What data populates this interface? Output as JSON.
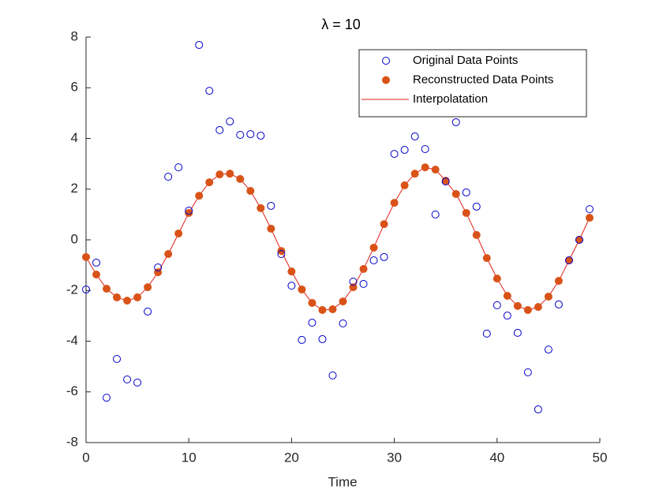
{
  "chart_data": {
    "type": "line",
    "title": "λ = 10",
    "x_label": "Time",
    "x": [
      0,
      1,
      2,
      3,
      4,
      5,
      6,
      7,
      8,
      9,
      10,
      11,
      12,
      13,
      14,
      15,
      16,
      17,
      18,
      19,
      20,
      21,
      22,
      23,
      24,
      25,
      26,
      27,
      28,
      29,
      30,
      31,
      32,
      33,
      34,
      35,
      36,
      37,
      38,
      39,
      40,
      41,
      42,
      43,
      44,
      45,
      46,
      47,
      48,
      49
    ],
    "series": [
      {
        "name": "Original Data Points",
        "color": "#0000cc",
        "style": "open-circle",
        "values": [
          -1.96,
          -0.9,
          -6.23,
          -4.7,
          -5.51,
          -5.63,
          -2.83,
          -1.09,
          2.49,
          2.86,
          1.15,
          7.69,
          5.88,
          4.33,
          4.67,
          4.14,
          4.17,
          4.11,
          1.34,
          -0.56,
          -1.81,
          -3.95,
          -3.27,
          -3.92,
          -5.35,
          -3.3,
          -1.65,
          -1.74,
          -0.81,
          -0.68,
          3.39,
          3.55,
          4.08,
          3.58,
          1.0,
          2.3,
          4.64,
          1.87,
          1.31,
          -3.7,
          -2.58,
          -2.99,
          -3.67,
          -5.23,
          -6.69,
          -4.33,
          -2.55,
          -0.81,
          0.0,
          1.21
        ]
      },
      {
        "name": "Reconstructed Data Points",
        "color": "#d95319",
        "style": "filled-circle",
        "values": [
          -0.68,
          -1.37,
          -1.93,
          -2.27,
          -2.4,
          -2.27,
          -1.87,
          -1.28,
          -0.56,
          0.25,
          1.06,
          1.74,
          2.27,
          2.58,
          2.61,
          2.4,
          1.93,
          1.25,
          0.44,
          -0.44,
          -1.25,
          -1.96,
          -2.49,
          -2.77,
          -2.74,
          -2.43,
          -1.87,
          -1.15,
          -0.31,
          0.62,
          1.46,
          2.15,
          2.61,
          2.86,
          2.77,
          2.33,
          1.81,
          1.06,
          0.19,
          -0.72,
          -1.53,
          -2.21,
          -2.61,
          -2.77,
          -2.65,
          -2.24,
          -1.62,
          -0.81,
          0.0,
          0.87
        ]
      },
      {
        "name": "Interpolatation",
        "color": "#e0201b",
        "style": "line",
        "values": [
          -0.68,
          -1.37,
          -1.93,
          -2.27,
          -2.4,
          -2.27,
          -1.87,
          -1.28,
          -0.56,
          0.25,
          1.06,
          1.74,
          2.27,
          2.58,
          2.61,
          2.4,
          1.93,
          1.25,
          0.44,
          -0.44,
          -1.25,
          -1.96,
          -2.49,
          -2.77,
          -2.74,
          -2.43,
          -1.87,
          -1.15,
          -0.31,
          0.62,
          1.46,
          2.15,
          2.61,
          2.86,
          2.77,
          2.33,
          1.81,
          1.06,
          0.19,
          -0.72,
          -1.53,
          -2.21,
          -2.61,
          -2.77,
          -2.65,
          -2.24,
          -1.62,
          -0.81,
          0.0,
          0.87
        ]
      }
    ],
    "xlim": [
      0,
      50
    ],
    "xticks": [
      0,
      10,
      20,
      30,
      40,
      50
    ],
    "ylim": [
      -8,
      8
    ],
    "yticks": [
      -8,
      -6,
      -4,
      -2,
      0,
      2,
      4,
      6,
      8
    ],
    "legend": "upper-right",
    "grid": false
  }
}
